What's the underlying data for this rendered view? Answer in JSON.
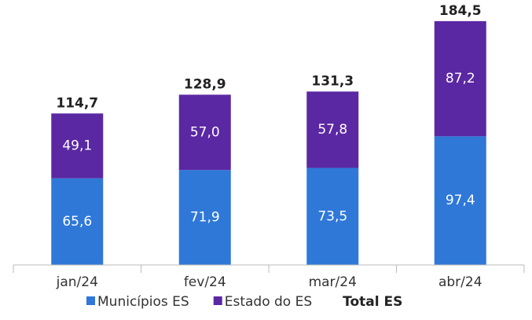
{
  "chart_data": {
    "type": "stacked_bar",
    "categories": [
      "jan/24",
      "fev/24",
      "mar/24",
      "abr/24"
    ],
    "series": [
      {
        "name": "Municípios ES",
        "color": "#2f78d8",
        "values": [
          65.6,
          71.9,
          73.5,
          97.4
        ],
        "value_labels": [
          "65,6",
          "71,9",
          "73,5",
          "97,4"
        ]
      },
      {
        "name": "Estado do ES",
        "color": "#5b28a3",
        "values": [
          49.1,
          57.0,
          57.8,
          87.2
        ],
        "value_labels": [
          "49,1",
          "57,0",
          "57,8",
          "87,2"
        ]
      }
    ],
    "totals": {
      "name": "Total ES",
      "values": [
        114.7,
        128.9,
        131.3,
        184.5
      ],
      "value_labels": [
        "114,7",
        "128,9",
        "131,3",
        "184,5"
      ]
    },
    "ylim": [
      0,
      200
    ]
  }
}
